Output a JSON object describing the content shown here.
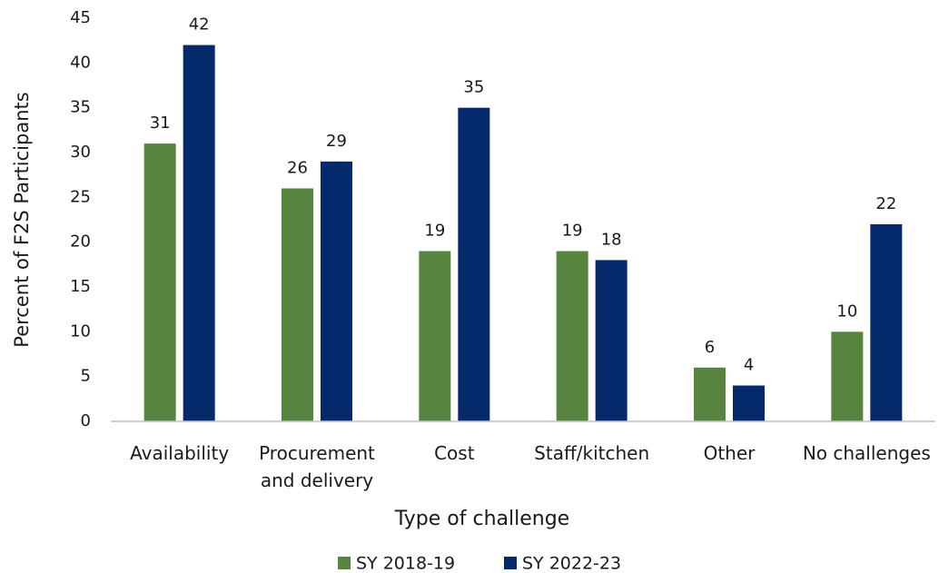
{
  "chart_data": {
    "type": "bar",
    "x_label": "Type of challenge",
    "y_label": "Percent of F2S Participants",
    "categories": [
      "Availability",
      "Procurement and delivery",
      "Cost",
      "Staff/kitchen",
      "Other",
      "No challenges"
    ],
    "series": [
      {
        "name": "SY 2018-19",
        "color": "#578540",
        "values": [
          31,
          26,
          19,
          19,
          6,
          10
        ]
      },
      {
        "name": "SY 2022-23",
        "color": "#042a6c",
        "values": [
          42,
          29,
          35,
          18,
          4,
          22
        ]
      }
    ],
    "ylim": [
      0,
      45
    ],
    "yticks": [
      0,
      5,
      10,
      15,
      20,
      25,
      30,
      35,
      40,
      45
    ],
    "grid": false,
    "legend": "bottom"
  }
}
